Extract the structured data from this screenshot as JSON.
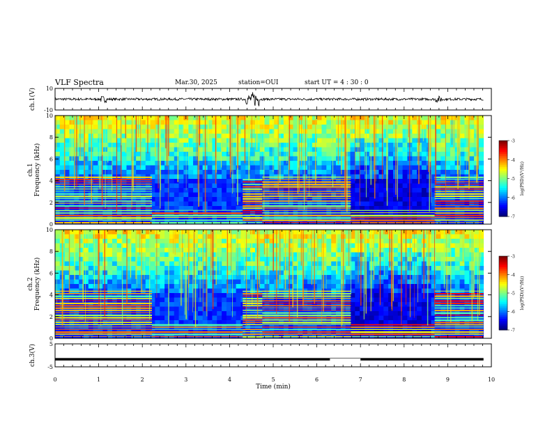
{
  "header": {
    "title": "VLF Spectra",
    "date": "Mar.30, 2025",
    "station": "station=OUI",
    "start_ut": "start  UT =  4 : 30 : 0"
  },
  "chart_data": [
    {
      "type": "line",
      "panel": "waveform-ch1",
      "ylabel": "ch.1(V)",
      "yticks": [
        "10",
        "-10"
      ],
      "ylim": [
        -10,
        10
      ],
      "xlim": [
        0,
        10
      ],
      "baseline": 0,
      "bursts": [
        {
          "x": 1.1,
          "amp": 3
        },
        {
          "x": 4.45,
          "amp": 5
        },
        {
          "x": 4.6,
          "amp": 7
        },
        {
          "x": 8.8,
          "amp": 3
        }
      ]
    },
    {
      "type": "heatmap",
      "panel": "spectrogram-ch1",
      "ylabel": "ch.1  Frequency (kHz)",
      "ylim": [
        0,
        10
      ],
      "xlim": [
        0,
        10
      ],
      "yticks": [
        "0",
        "2",
        "4",
        "6",
        "8",
        "10"
      ],
      "colorbar": {
        "label": "log(PSD)(V²/Hz)",
        "ticks": [
          "-3",
          "-4",
          "-5",
          "-6",
          "-7"
        ],
        "range": [
          -7,
          -3
        ]
      },
      "segments": [
        {
          "x": [
            0,
            2.22
          ],
          "band_top": 4.5
        },
        {
          "x": [
            2.22,
            4.3
          ],
          "band_top": 1.5
        },
        {
          "x": [
            4.3,
            4.75
          ],
          "band_top": 4.3
        },
        {
          "x": [
            4.75,
            6.78
          ],
          "band_top": 4.4
        },
        {
          "x": [
            6.78,
            8.7
          ],
          "band_top": 1.5
        },
        {
          "x": [
            8.7,
            9.82
          ],
          "band_top": 4.6
        }
      ]
    },
    {
      "type": "heatmap",
      "panel": "spectrogram-ch2",
      "ylabel": "ch.2  Frequency (kHz)",
      "ylim": [
        0,
        10
      ],
      "xlim": [
        0,
        10
      ],
      "yticks": [
        "0",
        "2",
        "4",
        "6",
        "8",
        "10"
      ],
      "colorbar": {
        "label": "log(PSD)(V²/Hz)",
        "ticks": [
          "-3",
          "-4",
          "-5",
          "-6",
          "-7"
        ],
        "range": [
          -7,
          -3
        ]
      },
      "segments": [
        {
          "x": [
            0,
            2.22
          ],
          "band_top": 4.5
        },
        {
          "x": [
            2.22,
            4.3
          ],
          "band_top": 1.5
        },
        {
          "x": [
            4.3,
            4.75
          ],
          "band_top": 4.4
        },
        {
          "x": [
            4.75,
            6.78
          ],
          "band_top": 4.4
        },
        {
          "x": [
            6.78,
            8.7
          ],
          "band_top": 1.5
        },
        {
          "x": [
            8.7,
            9.82
          ],
          "band_top": 4.6
        }
      ]
    },
    {
      "type": "line",
      "panel": "waveform-ch3",
      "ylabel": "ch.3(V)",
      "yticks": [
        "5",
        "-5"
      ],
      "ylim": [
        -5,
        5
      ],
      "xlim": [
        0,
        10
      ],
      "level": -1.7,
      "gaps": [
        [
          6.3,
          7.0
        ]
      ]
    }
  ],
  "xaxis": {
    "label": "Time  (min)",
    "ticks": [
      "0",
      "1",
      "2",
      "3",
      "4",
      "5",
      "6",
      "7",
      "8",
      "9",
      "10"
    ],
    "data_end": 9.82
  }
}
